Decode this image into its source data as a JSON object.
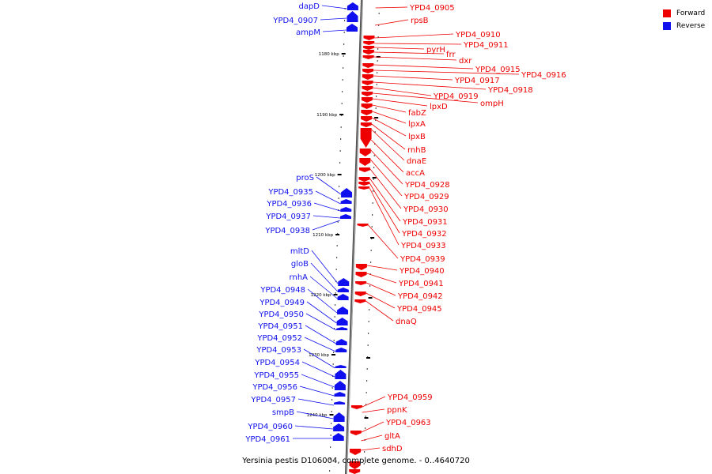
{
  "colors": {
    "forward": "#ee0000",
    "reverse": "#1010ee",
    "axis": "#8a8a8a"
  },
  "legend": {
    "forward": "Forward",
    "reverse": "Reverse"
  },
  "caption": "Yersinia pestis D106004, complete genome. - 0..4640720",
  "ticks": [
    "1180 kbp",
    "1190 kbp",
    "1200 kbp",
    "1210 kbp",
    "1220 kbp",
    "1230 kbp",
    "1240 kbp"
  ],
  "forward_genes": [
    "YPD4_0905",
    "rpsB",
    "YPD4_0910",
    "YPD4_0911",
    "pyrH",
    "frr",
    "dxr",
    "YPD4_0915",
    "YPD4_0916",
    "YPD4_0917",
    "YPD4_0918",
    "YPD4_0919",
    "ompH",
    "lpxD",
    "fabZ",
    "lpxA",
    "lpxB",
    "rnhB",
    "dnaE",
    "accA",
    "YPD4_0928",
    "YPD4_0929",
    "YPD4_0930",
    "YPD4_0931",
    "YPD4_0932",
    "YPD4_0933",
    "YPD4_0939",
    "YPD4_0940",
    "YPD4_0941",
    "YPD4_0942",
    "YPD4_0945",
    "dnaQ",
    "YPD4_0959",
    "ppnK",
    "YPD4_0963",
    "gltA",
    "sdhD"
  ],
  "reverse_genes": [
    "dapD",
    "YPD4_0907",
    "ampM",
    "proS",
    "YPD4_0935",
    "YPD4_0936",
    "YPD4_0937",
    "YPD4_0938",
    "mltD",
    "gloB",
    "rnhA",
    "YPD4_0948",
    "YPD4_0949",
    "YPD4_0950",
    "YPD4_0951",
    "YPD4_0952",
    "YPD4_0953",
    "YPD4_0954",
    "YPD4_0955",
    "YPD4_0956",
    "YPD4_0957",
    "smpB",
    "YPD4_0960",
    "YPD4_0961"
  ]
}
